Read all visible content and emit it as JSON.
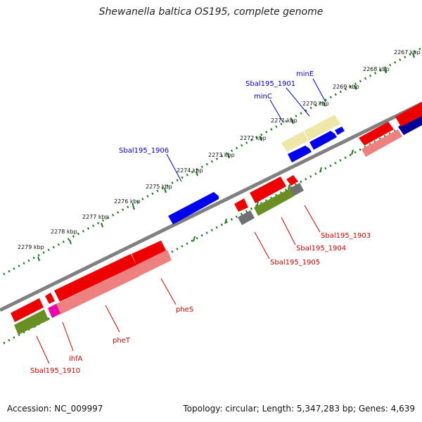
{
  "title": "Shewanella baltica OS195, complete genome",
  "footer": {
    "accession": "Accession: NC_009997",
    "summary": "Topology: circular; Length: 5,347,283 bp; Genes: 4,639"
  },
  "colors": {
    "forward_label": "#0000cc",
    "reverse_label": "#cc0000",
    "backbone": "#808080",
    "ticks": "#1a7a1a"
  },
  "kbp_labels": [
    "2267 kbp",
    "2268 kbp",
    "2269 kbp",
    "2270 kbp",
    "2271 kbp",
    "2272 kbp",
    "2273 kbp",
    "2274 kbp",
    "2275 kbp",
    "2276 kbp",
    "2277 kbp",
    "2278 kbp",
    "2279 kbp"
  ],
  "gene_labels": [
    {
      "text": "minE",
      "strand": "forward"
    },
    {
      "text": "Sbal195_1901",
      "strand": "forward"
    },
    {
      "text": "minC",
      "strand": "forward"
    },
    {
      "text": "Sbal195_1906",
      "strand": "forward"
    },
    {
      "text": "Sbal195_1903",
      "strand": "reverse"
    },
    {
      "text": "Sbal195_1904",
      "strand": "reverse"
    },
    {
      "text": "Sbal195_1905",
      "strand": "reverse"
    },
    {
      "text": "pheS",
      "strand": "reverse"
    },
    {
      "text": "pheT",
      "strand": "reverse"
    },
    {
      "text": "ihfA",
      "strand": "reverse"
    },
    {
      "text": "Sbal195_1910",
      "strand": "reverse"
    }
  ]
}
